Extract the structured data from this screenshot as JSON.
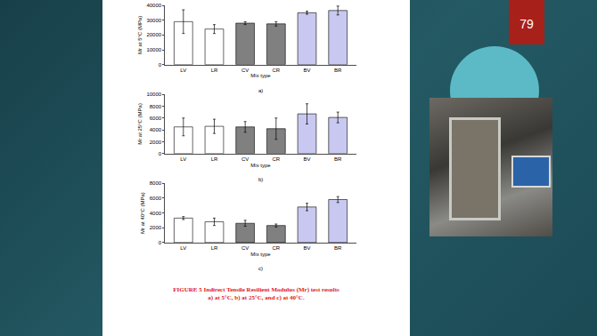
{
  "slide": {
    "page_number": "79",
    "caption": [
      "FIGURE 5 Indirect Tensile Resilient Modulus (Mr) test results",
      "a) at 5°C, b) at 25°C, and c) at 40°C."
    ]
  },
  "chart_data": [
    {
      "type": "bar",
      "label": "a)",
      "x_label": "Mix type",
      "y_label": "Mr at 5°C (MPa)",
      "categories": [
        "LV",
        "LR",
        "CV",
        "CR",
        "BV",
        "BR"
      ],
      "values": [
        29000,
        24000,
        28000,
        27500,
        35000,
        36500
      ],
      "errors": [
        8000,
        3000,
        1000,
        1500,
        1000,
        3000
      ],
      "colors": [
        "#ffffff",
        "#ffffff",
        "#808080",
        "#808080",
        "#c8c8f0",
        "#c8c8f0"
      ],
      "ylim": [
        0,
        40000
      ],
      "yticks": [
        0,
        10000,
        20000,
        30000,
        40000
      ],
      "grid": false
    },
    {
      "type": "bar",
      "label": "b)",
      "x_label": "Mix type",
      "y_label": "Mr at 25°C (MPa)",
      "categories": [
        "LV",
        "LR",
        "CV",
        "CR",
        "BV",
        "BR"
      ],
      "values": [
        4500,
        4600,
        4500,
        4200,
        6700,
        6100
      ],
      "errors": [
        1500,
        1200,
        900,
        1800,
        1700,
        900
      ],
      "colors": [
        "#ffffff",
        "#ffffff",
        "#808080",
        "#808080",
        "#c8c8f0",
        "#c8c8f0"
      ],
      "ylim": [
        0,
        10000
      ],
      "yticks": [
        0,
        2000,
        4000,
        6000,
        8000,
        10000
      ],
      "grid": false
    },
    {
      "type": "bar",
      "label": "c)",
      "x_label": "Mix type",
      "y_label": "Mr at 40°C (MPa)",
      "categories": [
        "LV",
        "LR",
        "CV",
        "CR",
        "BV",
        "BR"
      ],
      "values": [
        3300,
        2800,
        2600,
        2300,
        4800,
        5800
      ],
      "errors": [
        200,
        500,
        400,
        200,
        500,
        400
      ],
      "colors": [
        "#ffffff",
        "#ffffff",
        "#808080",
        "#808080",
        "#c8c8f0",
        "#c8c8f0"
      ],
      "ylim": [
        0,
        8000
      ],
      "yticks": [
        0,
        2000,
        4000,
        6000,
        8000
      ],
      "grid": false
    }
  ]
}
